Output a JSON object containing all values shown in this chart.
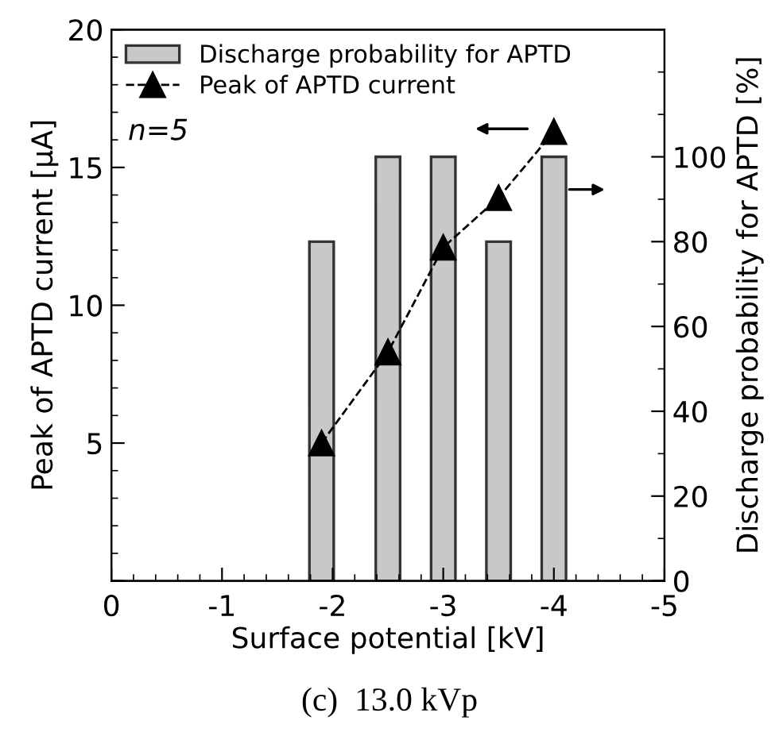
{
  "chart_data": {
    "type": "bar",
    "xlabel": "Surface potential [kV]",
    "ylabel": "Peak of APTD current [μA]",
    "y2label": "Discharge probability for APTD [%]",
    "x": [
      -1.9,
      -2.5,
      -3.0,
      -3.5,
      -4.0
    ],
    "series": [
      {
        "name": "Discharge probability for APTD",
        "axis": "y2",
        "color": "#c8c8c8",
        "values": [
          80,
          100,
          100,
          80,
          100
        ]
      },
      {
        "name": "Peak of APTD current",
        "type": "line",
        "axis": "y",
        "color": "#000000",
        "marker": "triangle",
        "line_style": "dashed",
        "values": [
          5.0,
          8.3,
          12.1,
          13.9,
          16.3
        ]
      }
    ],
    "xlim": [
      0,
      -5
    ],
    "xticks": [
      0,
      -1,
      -2,
      -3,
      -4,
      -5
    ],
    "ylim": [
      0,
      20
    ],
    "yticks": [
      {
        "value": 0,
        "label": null
      },
      5,
      10,
      15,
      20
    ],
    "y2lim": [
      0,
      130
    ],
    "y2ticks": [
      0,
      20,
      40,
      60,
      80,
      100
    ],
    "legend": "top left",
    "grid": false,
    "annotations": [
      "n=5",
      "(c)  13.0 kVp"
    ]
  }
}
